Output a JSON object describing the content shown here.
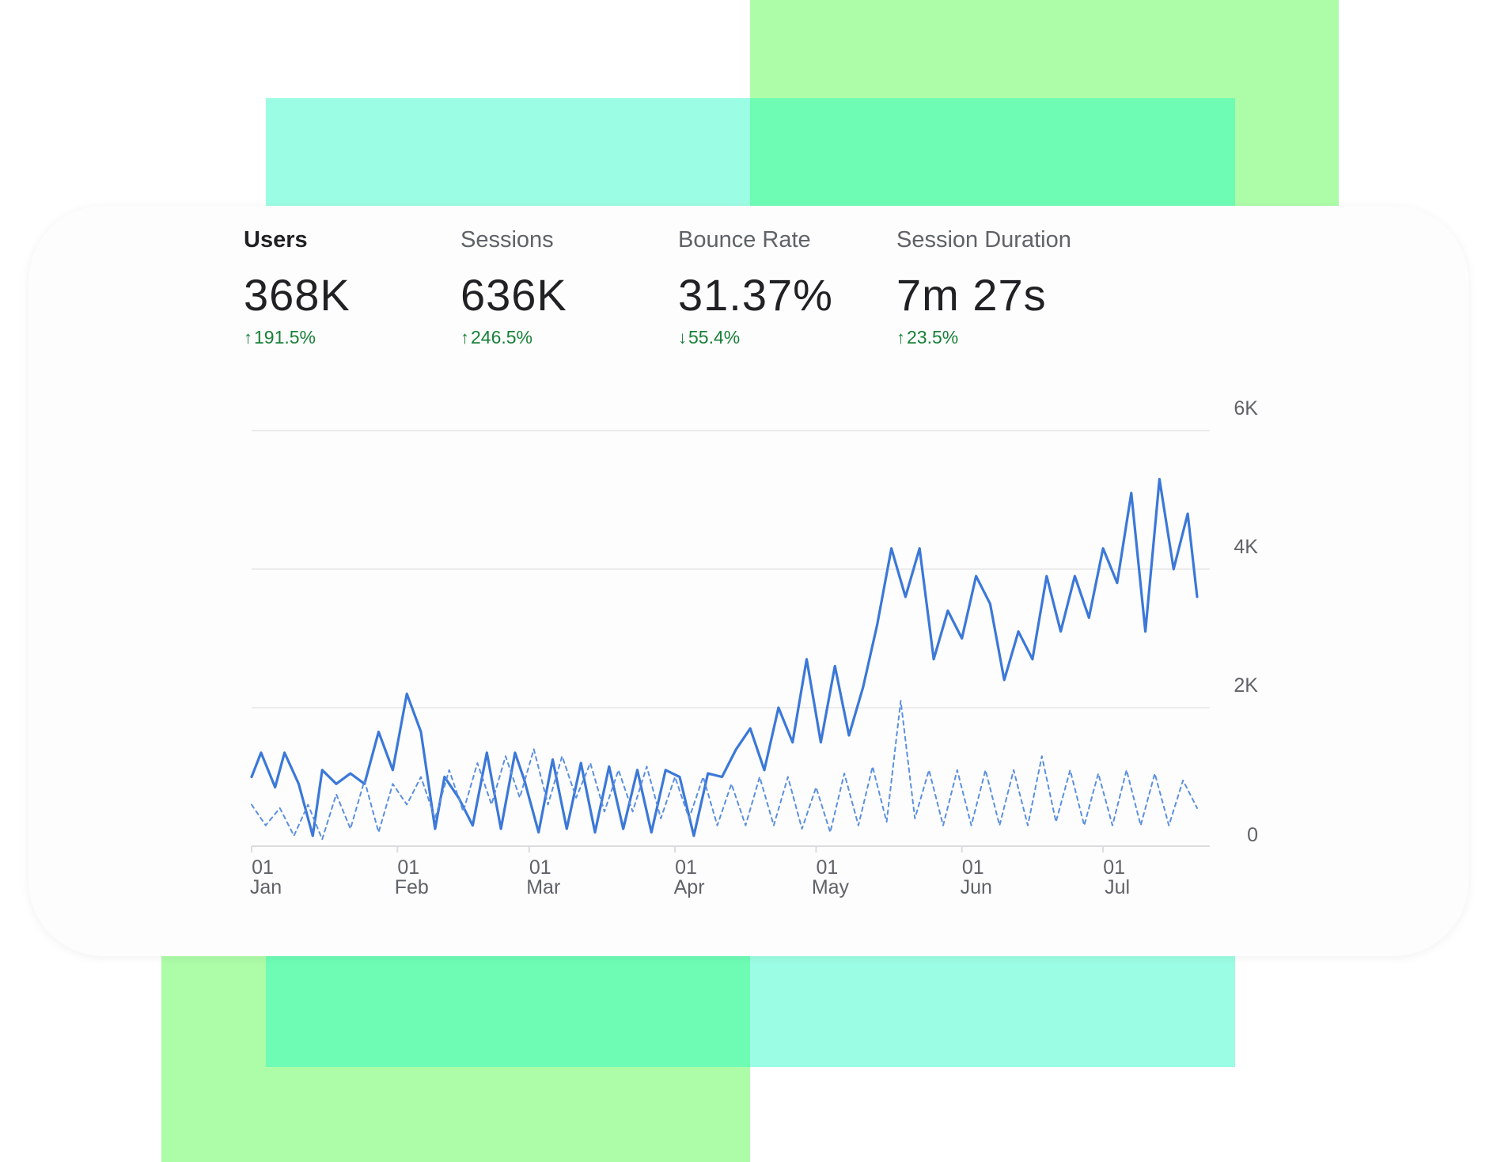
{
  "metrics": [
    {
      "label": "Users",
      "value": "368K",
      "change": "191.5%",
      "direction": "up",
      "active": true
    },
    {
      "label": "Sessions",
      "value": "636K",
      "change": "246.5%",
      "direction": "up",
      "active": false
    },
    {
      "label": "Bounce Rate",
      "value": "31.37%",
      "change": "55.4%",
      "direction": "down",
      "active": false
    },
    {
      "label": "Session Duration",
      "value": "7m 27s",
      "change": "23.5%",
      "direction": "up",
      "active": false
    }
  ],
  "colors": {
    "primary_series": "#3b78d8",
    "comparison_series": "#5b8fe0",
    "positive_change": "#188038",
    "decor_green": "#adfca8",
    "decor_teal": "#9bfde3",
    "decor_overlap": "#6efcb5"
  },
  "icons": {
    "up": "arrow-up-icon",
    "down": "arrow-down-icon"
  },
  "chart_data": {
    "type": "line",
    "title": "",
    "xlabel": "",
    "ylabel": "",
    "ylim": [
      0,
      6000
    ],
    "y_ticks": [
      "0",
      "2K",
      "4K",
      "6K"
    ],
    "y_tick_values": [
      0,
      2000,
      4000,
      6000
    ],
    "y_axis_side": "right",
    "grid": true,
    "x_ticks": [
      {
        "day": "01",
        "month": "Jan",
        "date": "2019-01-01"
      },
      {
        "day": "01",
        "month": "Feb",
        "date": "2019-02-01"
      },
      {
        "day": "01",
        "month": "Mar",
        "date": "2019-03-01"
      },
      {
        "day": "01",
        "month": "Apr",
        "date": "2019-04-01"
      },
      {
        "day": "01",
        "month": "May",
        "date": "2019-05-01"
      },
      {
        "day": "01",
        "month": "Jun",
        "date": "2019-06-01"
      },
      {
        "day": "01",
        "month": "Jul",
        "date": "2019-07-01"
      }
    ],
    "series": [
      {
        "style": "solid",
        "points": [
          [
            "2019-01-01",
            1000
          ],
          [
            "2019-01-03",
            1350
          ],
          [
            "2019-01-06",
            850
          ],
          [
            "2019-01-08",
            1350
          ],
          [
            "2019-01-11",
            900
          ],
          [
            "2019-01-14",
            150
          ],
          [
            "2019-01-16",
            1100
          ],
          [
            "2019-01-19",
            900
          ],
          [
            "2019-01-22",
            1050
          ],
          [
            "2019-01-25",
            900
          ],
          [
            "2019-01-28",
            1650
          ],
          [
            "2019-01-31",
            1100
          ],
          [
            "2019-02-03",
            2200
          ],
          [
            "2019-02-06",
            1650
          ],
          [
            "2019-02-09",
            250
          ],
          [
            "2019-02-11",
            1000
          ],
          [
            "2019-02-14",
            700
          ],
          [
            "2019-02-17",
            300
          ],
          [
            "2019-02-20",
            1350
          ],
          [
            "2019-02-23",
            250
          ],
          [
            "2019-02-26",
            1350
          ],
          [
            "2019-02-28",
            950
          ],
          [
            "2019-03-03",
            200
          ],
          [
            "2019-03-06",
            1250
          ],
          [
            "2019-03-09",
            250
          ],
          [
            "2019-03-12",
            1200
          ],
          [
            "2019-03-15",
            200
          ],
          [
            "2019-03-18",
            1150
          ],
          [
            "2019-03-21",
            250
          ],
          [
            "2019-03-24",
            1100
          ],
          [
            "2019-03-27",
            200
          ],
          [
            "2019-03-30",
            1100
          ],
          [
            "2019-04-02",
            1000
          ],
          [
            "2019-04-05",
            150
          ],
          [
            "2019-04-08",
            1050
          ],
          [
            "2019-04-11",
            1000
          ],
          [
            "2019-04-14",
            1400
          ],
          [
            "2019-04-17",
            1700
          ],
          [
            "2019-04-20",
            1100
          ],
          [
            "2019-04-23",
            2000
          ],
          [
            "2019-04-26",
            1500
          ],
          [
            "2019-04-29",
            2700
          ],
          [
            "2019-05-02",
            1500
          ],
          [
            "2019-05-05",
            2600
          ],
          [
            "2019-05-08",
            1600
          ],
          [
            "2019-05-11",
            2300
          ],
          [
            "2019-05-14",
            3200
          ],
          [
            "2019-05-17",
            4300
          ],
          [
            "2019-05-20",
            3600
          ],
          [
            "2019-05-23",
            4300
          ],
          [
            "2019-05-26",
            2700
          ],
          [
            "2019-05-29",
            3400
          ],
          [
            "2019-06-01",
            3000
          ],
          [
            "2019-06-04",
            3900
          ],
          [
            "2019-06-07",
            3500
          ],
          [
            "2019-06-10",
            2400
          ],
          [
            "2019-06-13",
            3100
          ],
          [
            "2019-06-16",
            2700
          ],
          [
            "2019-06-19",
            3900
          ],
          [
            "2019-06-22",
            3100
          ],
          [
            "2019-06-25",
            3900
          ],
          [
            "2019-06-28",
            3300
          ],
          [
            "2019-07-01",
            4300
          ],
          [
            "2019-07-04",
            3800
          ],
          [
            "2019-07-07",
            5100
          ],
          [
            "2019-07-10",
            3100
          ],
          [
            "2019-07-13",
            5300
          ],
          [
            "2019-07-16",
            4000
          ],
          [
            "2019-07-19",
            4800
          ],
          [
            "2019-07-21",
            3600
          ]
        ]
      },
      {
        "style": "dashed",
        "points": [
          [
            "2019-01-01",
            600
          ],
          [
            "2019-01-04",
            300
          ],
          [
            "2019-01-07",
            550
          ],
          [
            "2019-01-10",
            150
          ],
          [
            "2019-01-13",
            600
          ],
          [
            "2019-01-16",
            100
          ],
          [
            "2019-01-19",
            750
          ],
          [
            "2019-01-22",
            250
          ],
          [
            "2019-01-25",
            950
          ],
          [
            "2019-01-28",
            200
          ],
          [
            "2019-01-31",
            900
          ],
          [
            "2019-02-03",
            600
          ],
          [
            "2019-02-06",
            1000
          ],
          [
            "2019-02-09",
            400
          ],
          [
            "2019-02-12",
            1100
          ],
          [
            "2019-02-15",
            500
          ],
          [
            "2019-02-18",
            1200
          ],
          [
            "2019-02-21",
            600
          ],
          [
            "2019-02-24",
            1300
          ],
          [
            "2019-02-27",
            700
          ],
          [
            "2019-03-02",
            1400
          ],
          [
            "2019-03-05",
            600
          ],
          [
            "2019-03-08",
            1300
          ],
          [
            "2019-03-11",
            700
          ],
          [
            "2019-03-14",
            1200
          ],
          [
            "2019-03-17",
            500
          ],
          [
            "2019-03-20",
            1100
          ],
          [
            "2019-03-23",
            500
          ],
          [
            "2019-03-26",
            1150
          ],
          [
            "2019-03-29",
            400
          ],
          [
            "2019-04-01",
            1000
          ],
          [
            "2019-04-04",
            400
          ],
          [
            "2019-04-07",
            1000
          ],
          [
            "2019-04-10",
            300
          ],
          [
            "2019-04-13",
            900
          ],
          [
            "2019-04-16",
            300
          ],
          [
            "2019-04-19",
            1000
          ],
          [
            "2019-04-22",
            300
          ],
          [
            "2019-04-25",
            1000
          ],
          [
            "2019-04-28",
            250
          ],
          [
            "2019-05-01",
            850
          ],
          [
            "2019-05-04",
            200
          ],
          [
            "2019-05-07",
            1050
          ],
          [
            "2019-05-10",
            300
          ],
          [
            "2019-05-13",
            1150
          ],
          [
            "2019-05-16",
            350
          ],
          [
            "2019-05-19",
            2100
          ],
          [
            "2019-05-22",
            400
          ],
          [
            "2019-05-25",
            1100
          ],
          [
            "2019-05-28",
            300
          ],
          [
            "2019-05-31",
            1100
          ],
          [
            "2019-06-03",
            300
          ],
          [
            "2019-06-06",
            1100
          ],
          [
            "2019-06-09",
            300
          ],
          [
            "2019-06-12",
            1100
          ],
          [
            "2019-06-15",
            300
          ],
          [
            "2019-06-18",
            1300
          ],
          [
            "2019-06-21",
            350
          ],
          [
            "2019-06-24",
            1100
          ],
          [
            "2019-06-27",
            300
          ],
          [
            "2019-06-30",
            1050
          ],
          [
            "2019-07-03",
            300
          ],
          [
            "2019-07-06",
            1100
          ],
          [
            "2019-07-09",
            300
          ],
          [
            "2019-07-12",
            1050
          ],
          [
            "2019-07-15",
            300
          ],
          [
            "2019-07-18",
            950
          ],
          [
            "2019-07-21",
            550
          ]
        ]
      }
    ]
  }
}
